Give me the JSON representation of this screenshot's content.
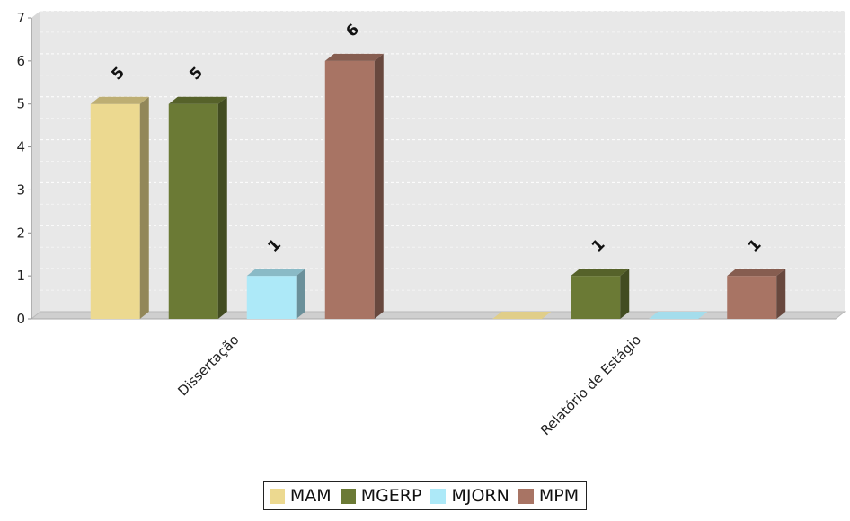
{
  "chart_data": {
    "type": "bar",
    "title": "",
    "xlabel": "",
    "ylabel": "",
    "categories": [
      "Dissertação",
      "Relatório de Estágio"
    ],
    "series": [
      {
        "name": "MAM",
        "values": [
          5,
          0
        ],
        "color": "#ecd990"
      },
      {
        "name": "MGERP",
        "values": [
          5,
          1
        ],
        "color": "#6b7a35"
      },
      {
        "name": "MJORN",
        "values": [
          1,
          0
        ],
        "color": "#ade9f8"
      },
      {
        "name": "MPM",
        "values": [
          6,
          1
        ],
        "color": "#a87464"
      }
    ],
    "ylim": [
      0,
      7
    ],
    "yticks": [
      "0",
      "1",
      "2",
      "3",
      "4",
      "5",
      "6",
      "7"
    ],
    "grid": true,
    "legend_position": "bottom",
    "value_labels": true,
    "style": "3d"
  },
  "colors": {
    "plot_background": "#e8e8e8",
    "gridline": "#ffffff",
    "axis": "#888888"
  }
}
